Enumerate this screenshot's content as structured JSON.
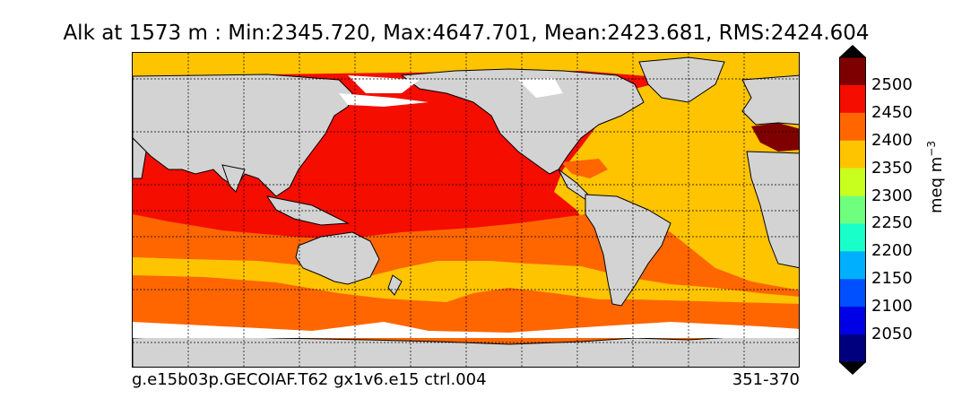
{
  "title": "Alk at 1573 m : Min:2345.720, Max:4647.701, Mean:2423.681, RMS:2424.604",
  "footer": {
    "case_name": "g.e15b03p.GECOIAF.T62 gx1v6.e15 ctrl.004",
    "years": "351-370"
  },
  "colorbar": {
    "unit_text": "meq m",
    "unit_exponent": "−3",
    "tick_labels": [
      "2500",
      "2450",
      "2400",
      "2350",
      "2300",
      "2250",
      "2200",
      "2150",
      "2100",
      "2050"
    ],
    "colors": [
      "#7f0000",
      "#f50d00",
      "#ff6600",
      "#ffc400",
      "#c8ff1e",
      "#6fff7f",
      "#19ffc9",
      "#00b0ff",
      "#0050ff",
      "#0000e6",
      "#00007f"
    ]
  },
  "colors": {
    "land": "#d3d3d3",
    "no_data": "#ffffff",
    "pacific": "#f50d00",
    "atlantic": "#ffc400",
    "southern": "#ff6600",
    "mediterranean": "#7f0000"
  }
}
